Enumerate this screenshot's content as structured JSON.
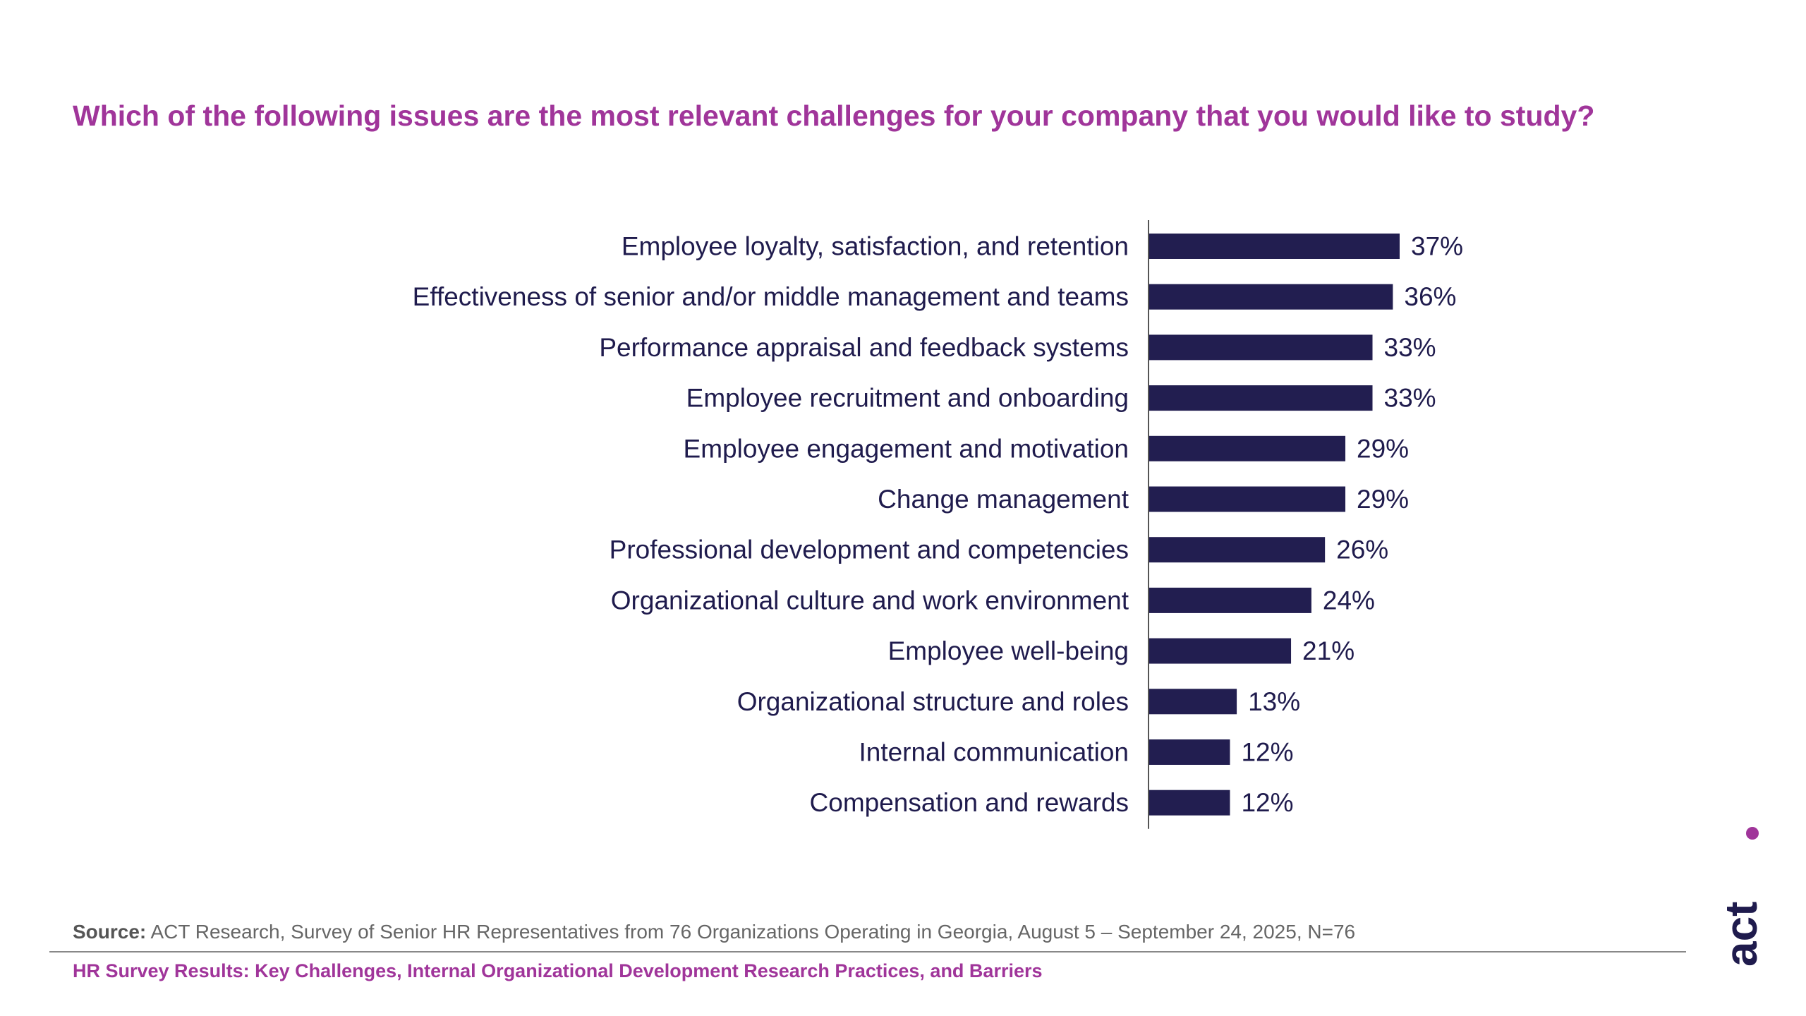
{
  "title": "Which of the following issues are the most relevant challenges for your company that you would like to study?",
  "source": {
    "label": "Source:",
    "text": "ACT Research, Survey of Senior HR Representatives from 76 Organizations Operating in Georgia, August 5 – September 24, 2025, N=76"
  },
  "footer": "HR Survey Results: Key Challenges, Internal Organizational Development Research Practices, and Barriers",
  "logo": {
    "text": "act",
    "icon": "act-logo",
    "dot_color": "#a0359a",
    "text_color": "#1f1b4d"
  },
  "colors": {
    "title": "#a0359a",
    "bar": "#221e50",
    "label": "#1f1b4d"
  },
  "chart_data": {
    "type": "bar",
    "orientation": "horizontal",
    "title": "",
    "xlabel": "",
    "ylabel": "",
    "xlim": [
      0,
      37
    ],
    "grid": false,
    "categories": [
      "Employee loyalty, satisfaction, and retention",
      "Effectiveness of senior and/or middle management and teams",
      "Performance appraisal and feedback systems",
      "Employee recruitment and onboarding",
      "Employee engagement and motivation",
      "Change management",
      "Professional development and competencies",
      "Organizational culture and work environment",
      "Employee well-being",
      "Organizational structure and roles",
      "Internal communication",
      "Compensation and rewards"
    ],
    "values": [
      37,
      36,
      33,
      33,
      29,
      29,
      26,
      24,
      21,
      13,
      12,
      12
    ],
    "value_labels": [
      "37%",
      "36%",
      "33%",
      "33%",
      "29%",
      "29%",
      "26%",
      "24%",
      "21%",
      "13%",
      "12%",
      "12%"
    ]
  }
}
